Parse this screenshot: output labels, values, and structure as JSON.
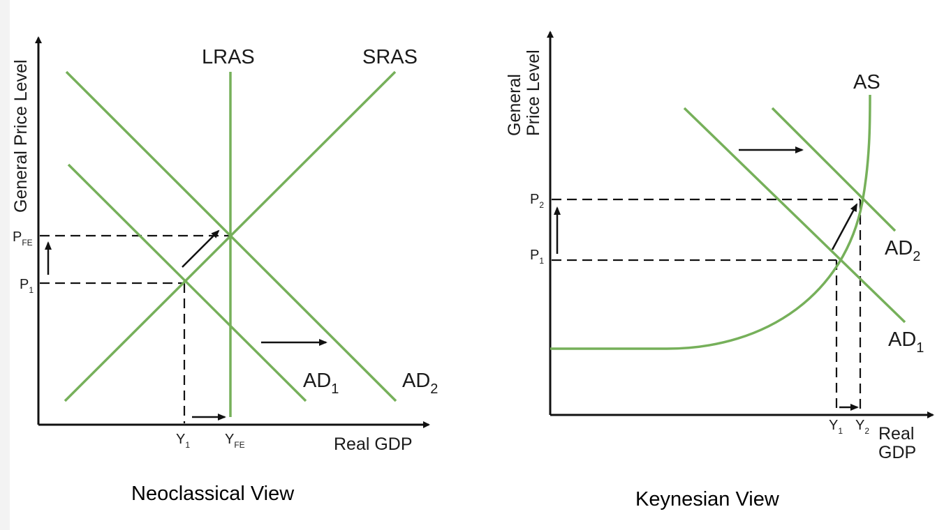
{
  "colors": {
    "curve": "#76b05a",
    "axis": "#111111",
    "guide": "#111111",
    "background": "#ffffff"
  },
  "neoclassical": {
    "title": "Neoclassical View",
    "y_axis_label": "General Price Level",
    "x_axis_label": "Real GDP",
    "lras_label": "LRAS",
    "sras_label": "SRAS",
    "ad1_main": "AD",
    "ad1_sub": "1",
    "ad2_main": "AD",
    "ad2_sub": "2",
    "pfe_main": "P",
    "pfe_sub": "FE",
    "p1_main": "P",
    "p1_sub": "1",
    "y1_main": "Y",
    "y1_sub": "1",
    "yfe_main": "Y",
    "yfe_sub": "FE"
  },
  "keynesian": {
    "title": "Keynesian View",
    "y_axis_label_line1": "General",
    "y_axis_label_line2": "Price Level",
    "x_axis_label_line1": "Real",
    "x_axis_label_line2": "GDP",
    "as_label": "AS",
    "ad1_main": "AD",
    "ad1_sub": "1",
    "ad2_main": "AD",
    "ad2_sub": "2",
    "p1_main": "P",
    "p1_sub": "1",
    "p2_main": "P",
    "p2_sub": "2",
    "y1_main": "Y",
    "y1_sub": "1",
    "y2_main": "Y",
    "y2_sub": "2"
  }
}
